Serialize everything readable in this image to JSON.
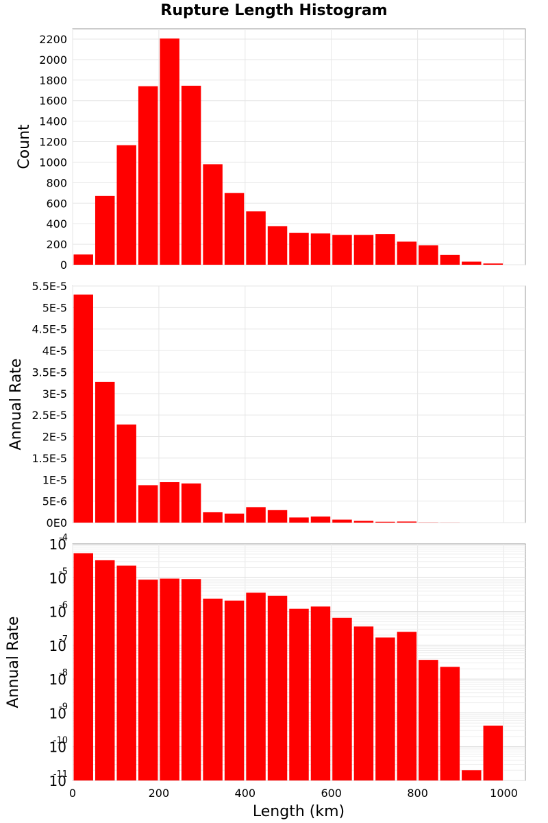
{
  "chart_data": {
    "title": "Rupture Length Histogram",
    "shared_x": {
      "label": "Length (km)",
      "range": [
        0,
        1050
      ],
      "ticks": [
        0,
        200,
        400,
        600,
        800,
        1000
      ],
      "bin_width": 50,
      "bin_centers": [
        25,
        75,
        125,
        175,
        225,
        275,
        325,
        375,
        425,
        475,
        525,
        575,
        625,
        675,
        725,
        775,
        825,
        875,
        925,
        975,
        1025
      ]
    },
    "panels": [
      {
        "type": "bar",
        "ylabel": "Count",
        "ylim": [
          0,
          2300
        ],
        "yscale": "linear",
        "ytick_labels": [
          "0",
          "200",
          "400",
          "600",
          "800",
          "1000",
          "1200",
          "1400",
          "1600",
          "1800",
          "2000",
          "2200"
        ],
        "ytick_values": [
          0,
          200,
          400,
          600,
          800,
          1000,
          1200,
          1400,
          1600,
          1800,
          2000,
          2200
        ],
        "grid": true,
        "color": "#ff0000",
        "values": [
          100,
          670,
          1165,
          1740,
          2205,
          1745,
          980,
          700,
          520,
          375,
          310,
          305,
          290,
          290,
          300,
          225,
          190,
          95,
          30,
          12,
          0
        ]
      },
      {
        "type": "bar",
        "ylabel": "Annual Rate",
        "ylim": [
          0,
          5.5e-05
        ],
        "yscale": "linear",
        "ytick_labels": [
          "0E0",
          "5E-6",
          "1E-5",
          "1.5E-5",
          "2E-5",
          "2.5E-5",
          "3E-5",
          "3.5E-5",
          "4E-5",
          "4.5E-5",
          "5E-5",
          "5.5E-5"
        ],
        "ytick_values": [
          0,
          5e-06,
          1e-05,
          1.5e-05,
          2e-05,
          2.5e-05,
          3e-05,
          3.5e-05,
          4e-05,
          4.5e-05,
          5e-05,
          5.5e-05
        ],
        "grid": true,
        "color": "#ff0000",
        "values": [
          5.3e-05,
          3.27e-05,
          2.28e-05,
          8.7e-06,
          9.4e-06,
          9.1e-06,
          2.4e-06,
          2.1e-06,
          3.6e-06,
          2.9e-06,
          1.2e-06,
          1.4e-06,
          7e-07,
          4e-07,
          2e-07,
          2.5e-07,
          4e-08,
          2e-08,
          0,
          0,
          0
        ]
      },
      {
        "type": "bar",
        "ylabel": "Annual Rate",
        "ylim": [
          1e-11,
          0.0001
        ],
        "yscale": "log",
        "ytick_base": "10",
        "ytick_exponents": [
          "-11",
          "-10",
          "-9",
          "-8",
          "-7",
          "-6",
          "-5",
          "-4"
        ],
        "ytick_values": [
          1e-11,
          1e-10,
          1e-09,
          1e-08,
          1e-07,
          1e-06,
          1e-05,
          0.0001
        ],
        "grid": true,
        "color": "#ff0000",
        "values": [
          5.3e-05,
          3.27e-05,
          2.28e-05,
          8.7e-06,
          9.4e-06,
          9.1e-06,
          2.4e-06,
          2.1e-06,
          3.6e-06,
          2.9e-06,
          1.2e-06,
          1.4e-06,
          6.5e-07,
          3.6e-07,
          1.7e-07,
          2.5e-07,
          3.7e-08,
          2.3e-08,
          2e-11,
          4.2e-10,
          0
        ]
      }
    ]
  }
}
